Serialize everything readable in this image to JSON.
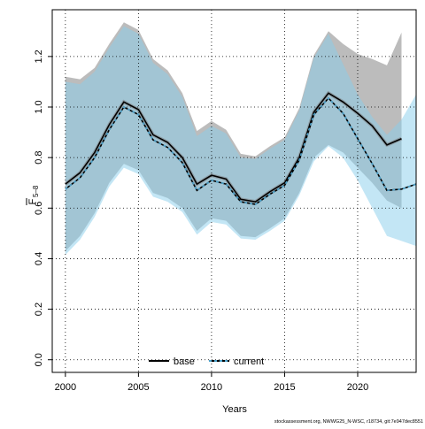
{
  "chart_data": {
    "type": "line",
    "xlabel": "Years",
    "ylabel_main": "F",
    "ylabel_sub": "5–8",
    "xlim": [
      1999.1,
      2024
    ],
    "ylim": [
      -0.05,
      1.385
    ],
    "x_ticks": [
      2000,
      2005,
      2010,
      2015,
      2020
    ],
    "y_ticks": [
      0.0,
      0.2,
      0.4,
      0.6,
      0.8,
      1.0,
      1.2
    ],
    "y_tick_labels": [
      "0.0",
      "0.2",
      "0.4",
      "0.6",
      "0.8",
      "1.0",
      "1.2"
    ],
    "grid": true,
    "legend_position": "bottom-center",
    "legend": [
      {
        "label": "base",
        "style": "solid"
      },
      {
        "label": "current",
        "style": "dashed"
      }
    ],
    "colors": {
      "base_band": "#a6a6a6",
      "base_band_opacity": 0.75,
      "current_band": "#87ceeb",
      "current_band_opacity": 0.5,
      "base_line": "#000000",
      "current_line": "#000000",
      "current_dash": "#4da3cc"
    },
    "series": [
      {
        "name": "base",
        "x": [
          2000,
          2001,
          2002,
          2003,
          2004,
          2005,
          2006,
          2007,
          2008,
          2009,
          2010,
          2011,
          2012,
          2013,
          2014,
          2015,
          2016,
          2017,
          2018,
          2019,
          2020,
          2021,
          2022,
          2023
        ],
        "values": [
          0.695,
          0.74,
          0.82,
          0.93,
          1.02,
          0.99,
          0.89,
          0.86,
          0.8,
          0.695,
          0.73,
          0.715,
          0.635,
          0.625,
          0.665,
          0.7,
          0.8,
          0.98,
          1.055,
          1.02,
          0.975,
          0.925,
          0.85,
          0.875
        ],
        "lower": [
          0.43,
          0.49,
          0.58,
          0.7,
          0.775,
          0.75,
          0.66,
          0.64,
          0.6,
          0.51,
          0.56,
          0.55,
          0.49,
          0.485,
          0.52,
          0.56,
          0.66,
          0.8,
          0.85,
          0.82,
          0.76,
          0.7,
          0.63,
          0.6
        ],
        "upper": [
          1.12,
          1.11,
          1.155,
          1.25,
          1.335,
          1.305,
          1.19,
          1.145,
          1.055,
          0.905,
          0.945,
          0.91,
          0.815,
          0.805,
          0.845,
          0.88,
          0.995,
          1.205,
          1.3,
          1.25,
          1.21,
          1.19,
          1.165,
          1.295
        ]
      },
      {
        "name": "current",
        "x": [
          2000,
          2001,
          2002,
          2003,
          2004,
          2005,
          2006,
          2007,
          2008,
          2009,
          2010,
          2011,
          2012,
          2013,
          2014,
          2015,
          2016,
          2017,
          2018,
          2019,
          2020,
          2021,
          2022,
          2023,
          2024
        ],
        "values": [
          0.675,
          0.72,
          0.8,
          0.91,
          1.0,
          0.97,
          0.87,
          0.84,
          0.78,
          0.67,
          0.71,
          0.695,
          0.625,
          0.615,
          0.655,
          0.69,
          0.79,
          0.97,
          1.035,
          0.975,
          0.875,
          0.775,
          0.67,
          0.675,
          0.695
        ],
        "lower": [
          0.415,
          0.475,
          0.565,
          0.685,
          0.76,
          0.735,
          0.645,
          0.625,
          0.585,
          0.495,
          0.545,
          0.535,
          0.48,
          0.475,
          0.51,
          0.55,
          0.65,
          0.785,
          0.845,
          0.8,
          0.71,
          0.6,
          0.49,
          0.47,
          0.45
        ],
        "upper": [
          1.1,
          1.09,
          1.14,
          1.235,
          1.32,
          1.29,
          1.175,
          1.13,
          1.04,
          0.885,
          0.925,
          0.895,
          0.8,
          0.795,
          0.835,
          0.87,
          0.985,
          1.195,
          1.29,
          1.17,
          1.05,
          0.96,
          0.89,
          0.95,
          1.05
        ]
      }
    ]
  },
  "footer": {
    "caption": "stockassessment.org, NWWG25_N-WSC, r18734, git:7e947dec8551"
  }
}
